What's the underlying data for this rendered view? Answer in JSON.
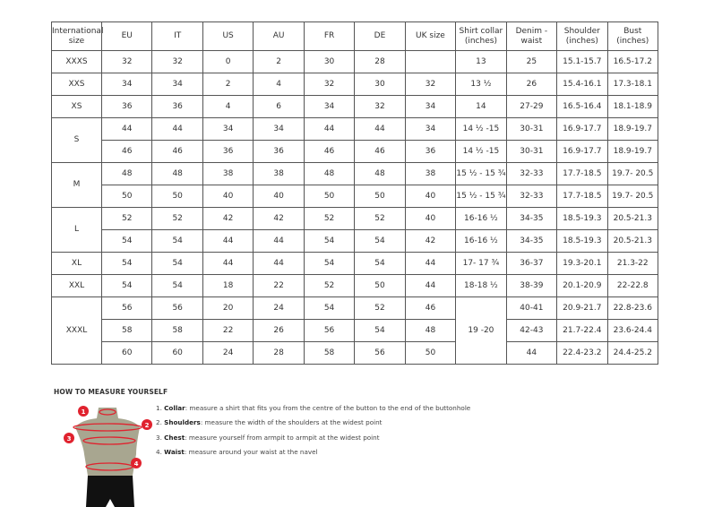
{
  "table": {
    "headers": [
      "International size",
      "EU",
      "IT",
      "US",
      "AU",
      "FR",
      "DE",
      "UK size",
      "Shirt collar (inches)",
      "Denim - waist",
      "Shoulder (inches)",
      "Bust (inches)"
    ],
    "groups": [
      {
        "size": "XXXS",
        "rows": [
          [
            "32",
            "32",
            "0",
            "2",
            "30",
            "28",
            "",
            "13",
            "25",
            "15.1-15.7",
            "16.5-17.2"
          ]
        ]
      },
      {
        "size": "XXS",
        "rows": [
          [
            "34",
            "34",
            "2",
            "4",
            "32",
            "30",
            "32",
            "13 ½",
            "26",
            "15.4-16.1",
            "17.3-18.1"
          ]
        ]
      },
      {
        "size": "XS",
        "rows": [
          [
            "36",
            "36",
            "4",
            "6",
            "34",
            "32",
            "34",
            "14",
            "27-29",
            "16.5-16.4",
            "18.1-18.9"
          ]
        ]
      },
      {
        "size": "S",
        "rows": [
          [
            "44",
            "44",
            "34",
            "34",
            "44",
            "44",
            "34",
            "14 ½ -15",
            "30-31",
            "16.9-17.7",
            "18.9-19.7"
          ],
          [
            "46",
            "46",
            "36",
            "36",
            "46",
            "46",
            "36",
            "14 ½ -15",
            "30-31",
            "16.9-17.7",
            "18.9-19.7"
          ]
        ]
      },
      {
        "size": "M",
        "rows": [
          [
            "48",
            "48",
            "38",
            "38",
            "48",
            "48",
            "38",
            "15 ½ - 15 ¾",
            "32-33",
            "17.7-18.5",
            "19.7- 20.5"
          ],
          [
            "50",
            "50",
            "40",
            "40",
            "50",
            "50",
            "40",
            "15 ½ - 15 ¾",
            "32-33",
            "17.7-18.5",
            "19.7- 20.5"
          ]
        ]
      },
      {
        "size": "L",
        "rows": [
          [
            "52",
            "52",
            "42",
            "42",
            "52",
            "52",
            "40",
            "16-16 ½",
            "34-35",
            "18.5-19.3",
            "20.5-21.3"
          ],
          [
            "54",
            "54",
            "44",
            "44",
            "54",
            "54",
            "42",
            "16-16 ½",
            "34-35",
            "18.5-19.3",
            "20.5-21.3"
          ]
        ]
      },
      {
        "size": "XL",
        "rows": [
          [
            "54",
            "54",
            "44",
            "44",
            "54",
            "54",
            "44",
            "17- 17 ¾",
            "36-37",
            "19.3-20.1",
            "21.3-22"
          ]
        ]
      },
      {
        "size": "XXL",
        "rows": [
          [
            "54",
            "54",
            "18",
            "22",
            "52",
            "50",
            "44",
            "18-18 ½",
            "38-39",
            "20.1-20.9",
            "22-22.8"
          ]
        ]
      },
      {
        "size": "XXXL",
        "rows": [
          [
            "56",
            "56",
            "20",
            "24",
            "54",
            "52",
            "46",
            "19 -20",
            "40-41",
            "20.9-21.7",
            "22.8-23.6"
          ],
          [
            "58",
            "58",
            "22",
            "26",
            "56",
            "54",
            "48",
            null,
            "42-43",
            "21.7-22.4",
            "23.6-24.4"
          ],
          [
            "60",
            "60",
            "24",
            "28",
            "58",
            "56",
            "50",
            null,
            "44",
            "22.4-23.2",
            "24.4-25.2"
          ]
        ]
      }
    ]
  },
  "howto": {
    "title": "HOW TO MEASURE YOURSELF",
    "markers": [
      "1",
      "2",
      "3",
      "4"
    ],
    "steps": [
      {
        "num": "1.",
        "label": "Collar",
        "text": ": measure a shirt that fits you from the centre of the button to the end of the buttonhole"
      },
      {
        "num": "2.",
        "label": "Shoulders",
        "text": ": measure the width of the shoulders at the widest point"
      },
      {
        "num": "3.",
        "label": "Chest",
        "text": ": measure yourself from armpit to armpit at the widest point"
      },
      {
        "num": "4.",
        "label": "Waist",
        "text": ": measure around your waist at the navel"
      }
    ]
  },
  "colors": {
    "marker": "#e0222e",
    "torso": "#a8a690",
    "pants": "#111111"
  }
}
